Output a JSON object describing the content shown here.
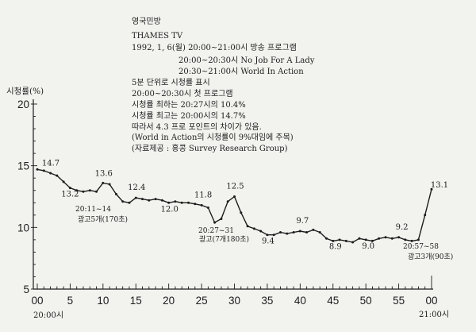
{
  "colors": {
    "background": "#f2f2ef",
    "ink": "#1c1c1c"
  },
  "chart_data": {
    "type": "line",
    "grid": false,
    "ylabel": "시청률(%)",
    "ylim": [
      5,
      20
    ],
    "xlim": [
      0,
      60
    ],
    "yticks": [
      "20",
      "15",
      "10",
      "5"
    ],
    "xticks": [
      "00",
      "5",
      "10",
      "15",
      "20",
      "25",
      "30",
      "35",
      "40",
      "45",
      "50",
      "55",
      "00"
    ],
    "x_time_labels": [
      "20:00시",
      "21:00시"
    ],
    "title_lines": [
      "영국민방",
      "THAMES TV",
      "1992, 1, 6(월) 20:00~21:00시 방송 프로그램"
    ],
    "program_lines": [
      "20:00~20:30시 No Job For A Lady",
      "20:30~21:00시 World In Action"
    ],
    "note_lines": [
      "5분 단위로 시청률 표시",
      "20:00~20:30시 첫 프로그램",
      "시청률 최하는 20:27시의 10.4%",
      "시청률 최고는 20:00시의 14.7%",
      "따라서 4.3 프로 포인트의 차이가 있음.",
      "(World in Action의 시청률이 9%대임에 주목)",
      "(자료제공 : 홍콩 Survey Research Group)"
    ],
    "series": [
      {
        "x": [
          0,
          1,
          2,
          3,
          4,
          5,
          6,
          7,
          8,
          9,
          10,
          11,
          12,
          13,
          14,
          15,
          16,
          17,
          18,
          19,
          20,
          21,
          22,
          23,
          24,
          25,
          26,
          27,
          28,
          29,
          30,
          31,
          32,
          33,
          34,
          35,
          36,
          37,
          38,
          39,
          40,
          41,
          42,
          43,
          44,
          45,
          46,
          47,
          48,
          49,
          50,
          51,
          52,
          53,
          54,
          55,
          56,
          57,
          58,
          59,
          60
        ],
        "values": [
          14.7,
          14.6,
          14.4,
          14.2,
          13.7,
          13.2,
          13.0,
          12.9,
          13.0,
          12.9,
          13.6,
          13.5,
          12.7,
          12.1,
          12.0,
          12.4,
          12.3,
          12.2,
          12.3,
          12.2,
          12.0,
          12.1,
          12.0,
          12.0,
          11.9,
          11.8,
          11.6,
          10.4,
          10.7,
          12.1,
          12.5,
          11.2,
          10.1,
          9.9,
          9.7,
          9.4,
          9.4,
          9.6,
          9.5,
          9.6,
          9.7,
          9.6,
          9.8,
          9.6,
          9.1,
          8.9,
          9.0,
          8.9,
          8.8,
          9.1,
          9.0,
          8.9,
          9.1,
          9.2,
          9.1,
          9.2,
          9.0,
          8.9,
          9.0,
          11.0,
          13.1
        ]
      }
    ],
    "data_labels": [
      {
        "x": 0,
        "label": "14.7"
      },
      {
        "x": 5,
        "label": "13.2"
      },
      {
        "x": 10,
        "label": "13.6"
      },
      {
        "x": 15,
        "label": "12.4"
      },
      {
        "x": 20,
        "label": "12.0"
      },
      {
        "x": 25,
        "label": "11.8"
      },
      {
        "x": 30,
        "label": "12.5"
      },
      {
        "x": 35,
        "label": "9.4"
      },
      {
        "x": 40,
        "label": "9.7"
      },
      {
        "x": 45,
        "label": "8.9"
      },
      {
        "x": 50,
        "label": "9.0"
      },
      {
        "x": 55,
        "label": "9.2"
      },
      {
        "x": 60,
        "label": "13.1"
      }
    ],
    "annotations": [
      {
        "time_range": "20:11~14",
        "text": "광고5개(170초)"
      },
      {
        "time_range": "20:27~31",
        "text": "광고(7개180초)"
      },
      {
        "time_range": "20:57~58",
        "text": "광고3개(90초)"
      }
    ]
  }
}
